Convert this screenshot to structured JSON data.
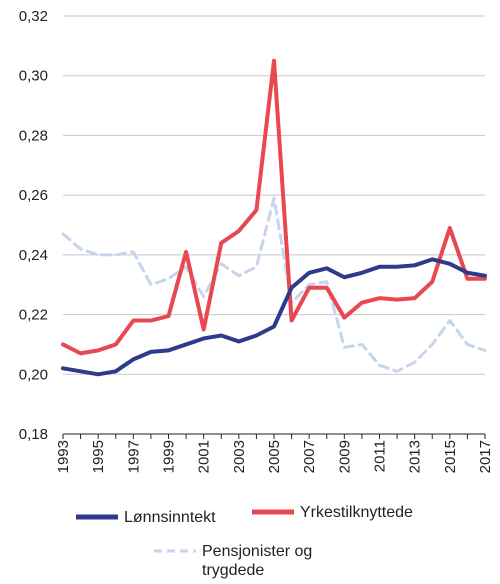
{
  "colors": {
    "lonnsinntekt": "#2e3a8c",
    "yrkestilknyttede": "#e8484f",
    "pensjonister": "#c6d5ec",
    "axis": "#222222",
    "grid": "#c8c8c8"
  },
  "chart_data": {
    "type": "line",
    "title": "",
    "xlabel": "",
    "ylabel": "",
    "xlim": [
      1993,
      2017
    ],
    "ylim": [
      0.18,
      0.32
    ],
    "grid": "horizontal",
    "legend_position": "bottom",
    "x": [
      1993,
      1994,
      1995,
      1996,
      1997,
      1998,
      1999,
      2000,
      2001,
      2002,
      2003,
      2004,
      2005,
      2006,
      2007,
      2008,
      2009,
      2010,
      2011,
      2012,
      2013,
      2014,
      2015,
      2016,
      2017
    ],
    "y_ticks": [
      0.18,
      0.2,
      0.22,
      0.24,
      0.26,
      0.28,
      0.3,
      0.32
    ],
    "y_tick_labels": [
      "0,18",
      "0,20",
      "0,22",
      "0,24",
      "0,26",
      "0,28",
      "0,30",
      "0,32"
    ],
    "x_ticks": [
      1993,
      1995,
      1997,
      1999,
      2001,
      2003,
      2005,
      2007,
      2009,
      2011,
      2013,
      2015,
      2017
    ],
    "x_tick_labels": [
      "1993",
      "1995",
      "1997",
      "1999",
      "2001",
      "2003",
      "2005",
      "2007",
      "2009",
      "2011",
      "2013",
      "2015",
      "2017"
    ],
    "series": [
      {
        "name": "Lønnsinntekt",
        "key": "lonnsinntekt",
        "style": "solid",
        "values": [
          0.202,
          0.201,
          0.2,
          0.201,
          0.205,
          0.2075,
          0.208,
          0.21,
          0.212,
          0.213,
          0.211,
          0.213,
          0.216,
          0.229,
          0.234,
          0.2355,
          0.2325,
          0.234,
          0.236,
          0.236,
          0.2365,
          0.2385,
          0.237,
          0.234,
          0.233
        ]
      },
      {
        "name": "Yrkestilknyttede",
        "key": "yrkestilknyttede",
        "style": "solid",
        "values": [
          0.21,
          0.207,
          0.208,
          0.21,
          0.218,
          0.218,
          0.2195,
          0.241,
          0.215,
          0.244,
          0.248,
          0.255,
          0.305,
          0.218,
          0.229,
          0.229,
          0.219,
          0.224,
          0.2255,
          0.225,
          0.2255,
          0.231,
          0.249,
          0.232,
          0.232
        ]
      },
      {
        "name": "Pensjonister og trygdede",
        "key": "pensjonister",
        "style": "dashed",
        "values": [
          0.247,
          0.242,
          0.24,
          0.24,
          0.241,
          0.23,
          0.232,
          0.236,
          0.226,
          0.237,
          0.233,
          0.236,
          0.259,
          0.224,
          0.23,
          0.231,
          0.209,
          0.21,
          0.203,
          0.201,
          0.204,
          0.21,
          0.218,
          0.21,
          0.208
        ]
      }
    ]
  },
  "legend": {
    "item1": "Lønnsinntekt",
    "item2": "Yrkestilknyttede",
    "item3_line1": "Pensjonister og",
    "item3_line2": "trygdede"
  }
}
